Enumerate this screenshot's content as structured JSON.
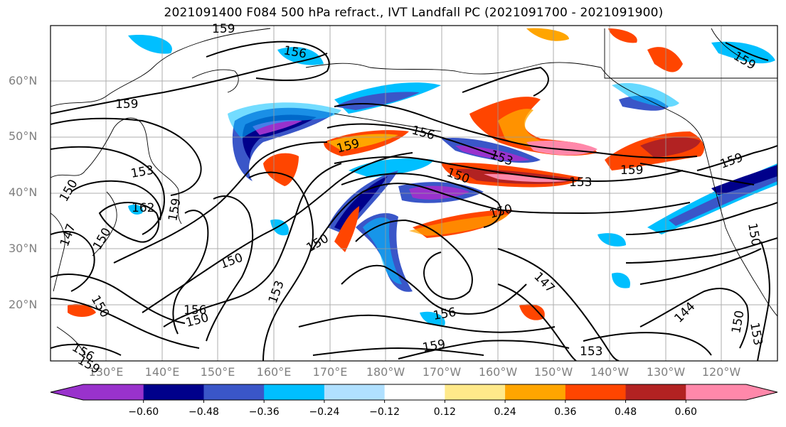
{
  "title": "2021091400 F084 500 hPa refract., IVT Landfall PC (2021091700 - 2021091900)",
  "lat_labels": [
    "60°N",
    "50°N",
    "40°N",
    "30°N",
    "20°N"
  ],
  "lon_labels": [
    "130°E",
    "140°E",
    "150°E",
    "160°E",
    "170°E",
    "180°W",
    "170°W",
    "160°W",
    "150°W",
    "140°W",
    "130°W",
    "120°W"
  ],
  "colorbar": {
    "colors": [
      "#9932cc",
      "#00008b",
      "#3a56c8",
      "#00bfff",
      "#b0e0ff",
      "#ffffff",
      "#ffe98a",
      "#ffa500",
      "#ff4500",
      "#b22222",
      "#ff88aa"
    ],
    "ticks": [
      "−0.60",
      "−0.48",
      "−0.36",
      "−0.24",
      "−0.12",
      "0.12",
      "0.24",
      "0.36",
      "0.48",
      "0.60"
    ]
  },
  "contour_labels": [
    "159",
    "156",
    "159",
    "153",
    "162",
    "159",
    "147",
    "150",
    "150",
    "150",
    "156",
    "150",
    "153",
    "156",
    "150",
    "150",
    "159",
    "156",
    "153",
    "150",
    "153",
    "150",
    "147",
    "156",
    "159",
    "153",
    "159",
    "159",
    "144",
    "150",
    "153",
    "159",
    "150",
    "159"
  ]
}
